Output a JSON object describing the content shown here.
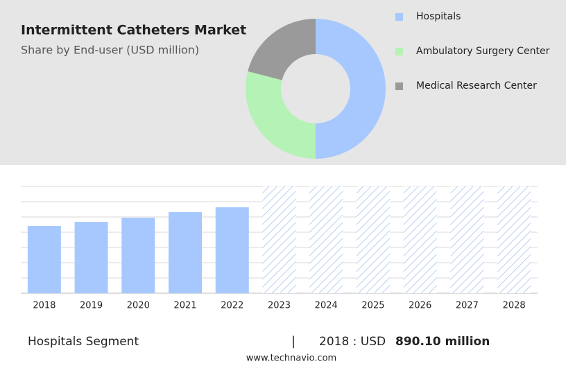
{
  "chart_data": [
    {
      "type": "donut",
      "title": "Intermittent Catheters Market",
      "subtitle": "Share by End-user (USD million)",
      "categories": [
        "Hospitals",
        "Ambulatory Surgery Center",
        "Medical Research Center"
      ],
      "values": [
        50,
        29,
        21
      ],
      "colors": [
        "#a6c8ff",
        "#b5f2b5",
        "#9a9a9a"
      ]
    },
    {
      "type": "bar",
      "categories": [
        "2018",
        "2019",
        "2020",
        "2021",
        "2022",
        "2023",
        "2024",
        "2025",
        "2026",
        "2027",
        "2028"
      ],
      "values": [
        890.1,
        945,
        1000,
        1074,
        1138,
        null,
        null,
        null,
        null,
        null,
        null
      ],
      "color": "#a6c8ff",
      "ylim": [
        0,
        1414
      ]
    }
  ],
  "footer": {
    "segment": "Hospitals Segment",
    "separator": "|",
    "year_label": "2018 : USD",
    "value_label": "890.10 million"
  },
  "source": "www.technavio.com"
}
